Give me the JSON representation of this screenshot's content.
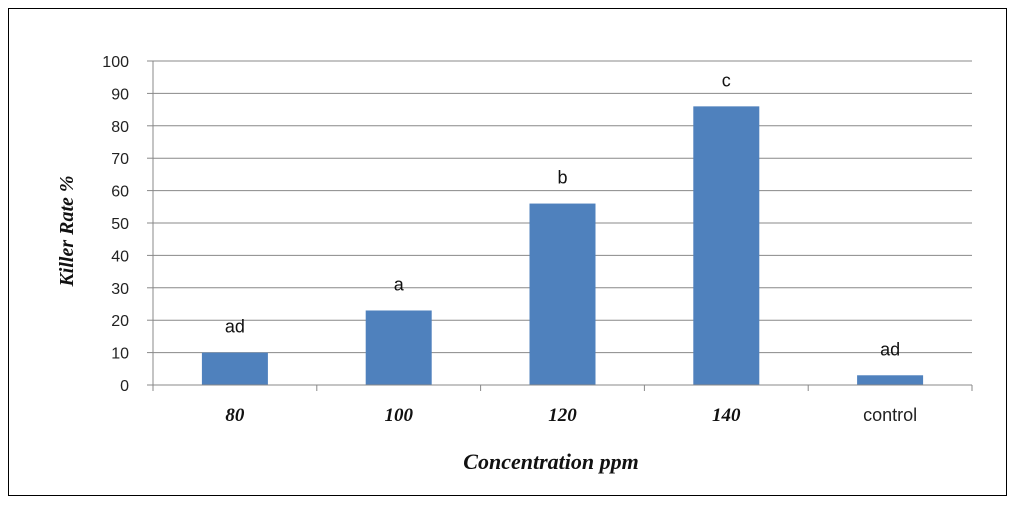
{
  "chart_data": {
    "type": "bar",
    "categories": [
      "80",
      "100",
      "120",
      "140",
      "control"
    ],
    "values": [
      10,
      23,
      56,
      86,
      3
    ],
    "data_labels": [
      "ad",
      "a",
      "b",
      "c",
      "ad"
    ],
    "xlabel": "Concentration ppm",
    "ylabel": "Killer Rate %",
    "ylim": [
      0,
      100
    ],
    "yticks": [
      0,
      10,
      20,
      30,
      40,
      50,
      60,
      70,
      80,
      90,
      100
    ],
    "grid": true,
    "bar_color": "#4f81bd",
    "grid_color": "#888888",
    "legend": "none"
  }
}
